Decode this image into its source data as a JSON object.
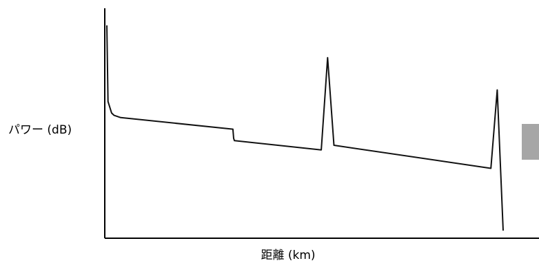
{
  "chart_data": {
    "type": "line",
    "title": "",
    "xlabel": "距離 (km)",
    "ylabel": "パワー (dB)",
    "grid": false,
    "legend": "none",
    "line_color": "#111111",
    "side_marker_color": "#a6a6a6",
    "xlim": [
      0,
      100
    ],
    "ylim": [
      0,
      100
    ],
    "series": [
      {
        "x": [
          0,
          0.3,
          1.2,
          1.8,
          3.5,
          31.8,
          32.0,
          32.2,
          54.1,
          55.7,
          57.3,
          96.9,
          98.5,
          100
        ],
        "y": [
          92,
          59,
          54,
          53,
          52,
          47,
          43,
          42,
          38,
          78,
          40,
          30,
          64,
          3
        ]
      }
    ]
  }
}
